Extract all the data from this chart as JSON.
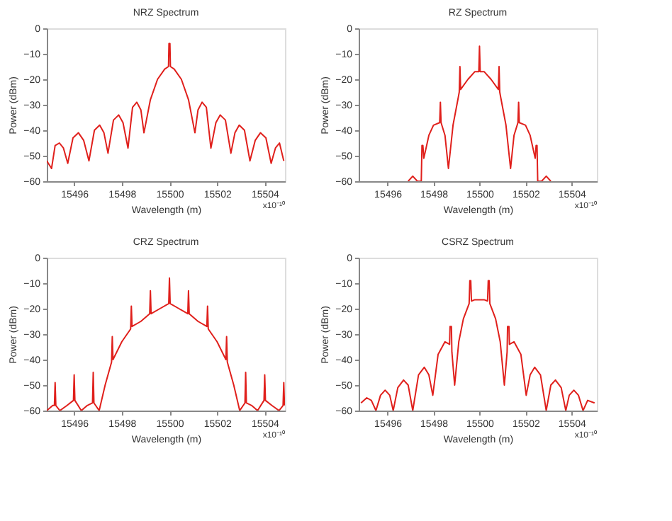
{
  "chart_data": [
    {
      "type": "line",
      "title": "NRZ Spectrum",
      "xlabel": "Wavelength (m)",
      "ylabel": "Power (dBm)",
      "annotations": [
        "x10⁻¹⁰"
      ],
      "xlim": [
        15494.85,
        15504.85
      ],
      "ylim": [
        -60,
        0
      ],
      "xticks": [
        15496,
        15498,
        15500,
        15502,
        15504
      ],
      "yticks": [
        0,
        -10,
        -20,
        -30,
        -40,
        -50,
        -60
      ],
      "grid": false,
      "line_style": "solid",
      "x": [
        15494.85,
        15495.05,
        15495.2,
        15495.38,
        15495.55,
        15495.73,
        15495.95,
        15496.18,
        15496.4,
        15496.62,
        15496.85,
        15497.07,
        15497.25,
        15497.42,
        15497.65,
        15497.87,
        15498.05,
        15498.26,
        15498.45,
        15498.63,
        15498.8,
        15498.93,
        15499.2,
        15499.5,
        15499.8,
        15499.96,
        15499.98,
        15500.02,
        15500.04,
        15500.2,
        15500.5,
        15500.8,
        15501.07,
        15501.2,
        15501.37,
        15501.55,
        15501.74,
        15501.95,
        15502.13,
        15502.35,
        15502.58,
        15502.75,
        15502.93,
        15503.15,
        15503.38,
        15503.6,
        15503.82,
        15504.05,
        15504.27,
        15504.45,
        15504.62,
        15504.8
      ],
      "series": [
        {
          "color": "#e0201c",
          "values": [
            -52,
            -55,
            -46,
            -45,
            -47,
            -53,
            -43,
            -41,
            -44,
            -52,
            -40,
            -38,
            -41,
            -49,
            -36,
            -34,
            -37,
            -47,
            -31,
            -29,
            -32,
            -41,
            -28,
            -20,
            -16,
            -15,
            -6,
            -6,
            -15,
            -16,
            -20,
            -28,
            -41,
            -32,
            -29,
            -31,
            -47,
            -37,
            -34,
            -36,
            -49,
            -41,
            -38,
            -40,
            -52,
            -44,
            -41,
            -43,
            -53,
            -47,
            -45,
            -52
          ]
        }
      ]
    },
    {
      "type": "line",
      "title": "RZ Spectrum",
      "xlabel": "Wavelength (m)",
      "ylabel": "Power (dBm)",
      "annotations": [
        "x10⁻¹⁰"
      ],
      "xlim": [
        15494.75,
        15505.1
      ],
      "ylim": [
        -60,
        0
      ],
      "xticks": [
        15496,
        15498,
        15500,
        15502,
        15504
      ],
      "yticks": [
        0,
        -10,
        -20,
        -30,
        -40,
        -50,
        -60
      ],
      "grid": false,
      "line_style": "solid",
      "x": [
        15496.9,
        15497.1,
        15497.3,
        15497.47,
        15497.5,
        15497.54,
        15497.58,
        15497.8,
        15498.0,
        15498.27,
        15498.3,
        15498.33,
        15498.5,
        15498.65,
        15498.85,
        15499.08,
        15499.12,
        15499.15,
        15499.18,
        15499.5,
        15499.8,
        15499.97,
        15500.0,
        15500.03,
        15500.2,
        15500.5,
        15500.82,
        15500.85,
        15500.88,
        15500.92,
        15501.15,
        15501.35,
        15501.5,
        15501.67,
        15501.7,
        15501.73,
        15502.0,
        15502.2,
        15502.42,
        15502.46,
        15502.5,
        15502.53,
        15502.7,
        15502.9,
        15503.1
      ],
      "series": [
        {
          "color": "#e0201c",
          "values": [
            -60,
            -58,
            -60,
            -60,
            -46,
            -46,
            -51,
            -42,
            -38,
            -37,
            -29,
            -37,
            -42,
            -55,
            -38,
            -27,
            -25,
            -15,
            -24,
            -20,
            -17,
            -17,
            -7,
            -17,
            -17,
            -20,
            -24,
            -15,
            -25,
            -27,
            -38,
            -55,
            -42,
            -37,
            -29,
            -37,
            -38,
            -42,
            -51,
            -46,
            -46,
            -60,
            -60,
            -58,
            -60
          ]
        }
      ]
    },
    {
      "type": "line",
      "title": "CRZ Spectrum",
      "xlabel": "Wavelength (m)",
      "ylabel": "Power (dBm)",
      "annotations": [
        "x10⁻¹⁰"
      ],
      "xlim": [
        15494.85,
        15504.85
      ],
      "ylim": [
        -60,
        0
      ],
      "xticks": [
        15496,
        15498,
        15500,
        15502,
        15504
      ],
      "yticks": [
        0,
        -10,
        -20,
        -30,
        -40,
        -50,
        -60
      ],
      "grid": false,
      "line_style": "solid",
      "x": [
        15494.85,
        15495.1,
        15495.17,
        15495.2,
        15495.23,
        15495.4,
        15495.7,
        15495.97,
        15496.0,
        15496.03,
        15496.3,
        15496.55,
        15496.77,
        15496.8,
        15496.83,
        15497.05,
        15497.3,
        15497.57,
        15497.6,
        15497.63,
        15498.0,
        15498.37,
        15498.4,
        15498.43,
        15498.8,
        15499.17,
        15499.2,
        15499.23,
        15499.6,
        15499.97,
        15500.0,
        15500.03,
        15500.4,
        15500.77,
        15500.8,
        15500.83,
        15501.2,
        15501.57,
        15501.6,
        15501.63,
        15502.0,
        15502.37,
        15502.4,
        15502.43,
        15502.7,
        15502.95,
        15503.17,
        15503.2,
        15503.23,
        15503.45,
        15503.7,
        15503.97,
        15504.0,
        15504.03,
        15504.3,
        15504.6,
        15504.77,
        15504.8,
        15504.83
      ],
      "series": [
        {
          "color": "#e0201c",
          "values": [
            -60,
            -58,
            -58,
            -49,
            -58,
            -60,
            -58,
            -56,
            -46,
            -56,
            -60,
            -58,
            -57,
            -45,
            -57,
            -60,
            -50,
            -41,
            -31,
            -40,
            -33,
            -28,
            -19,
            -27,
            -25,
            -22,
            -13,
            -22,
            -20,
            -18,
            -8,
            -18,
            -20,
            -22,
            -13,
            -22,
            -25,
            -27,
            -19,
            -28,
            -33,
            -40,
            -31,
            -41,
            -50,
            -60,
            -57,
            -45,
            -57,
            -58,
            -60,
            -56,
            -46,
            -56,
            -58,
            -60,
            -58,
            -49,
            -58
          ]
        }
      ]
    },
    {
      "type": "line",
      "title": "CSRZ Spectrum",
      "xlabel": "Wavelength (m)",
      "ylabel": "Power (dBm)",
      "annotations": [
        "x10⁻¹⁰"
      ],
      "xlim": [
        15494.75,
        15505.1
      ],
      "ylim": [
        -60,
        0
      ],
      "xticks": [
        15496,
        15498,
        15500,
        15502,
        15504
      ],
      "yticks": [
        0,
        -10,
        -20,
        -30,
        -40,
        -50,
        -60
      ],
      "grid": false,
      "line_style": "solid",
      "x": [
        15494.85,
        15495.1,
        15495.3,
        15495.5,
        15495.7,
        15495.9,
        15496.1,
        15496.25,
        15496.45,
        15496.7,
        15496.9,
        15497.1,
        15497.35,
        15497.6,
        15497.8,
        15497.97,
        15498.2,
        15498.5,
        15498.7,
        15498.72,
        15498.78,
        15498.8,
        15498.92,
        15499.1,
        15499.3,
        15499.55,
        15499.58,
        15499.62,
        15499.65,
        15499.8,
        15500.2,
        15500.35,
        15500.38,
        15500.42,
        15500.45,
        15500.7,
        15500.9,
        15501.08,
        15501.2,
        15501.22,
        15501.28,
        15501.3,
        15501.5,
        15501.8,
        15502.03,
        15502.2,
        15502.4,
        15502.65,
        15502.9,
        15503.1,
        15503.3,
        15503.55,
        15503.75,
        15503.9,
        15504.1,
        15504.3,
        15504.5,
        15504.7,
        15505.0
      ],
      "series": [
        {
          "color": "#e0201c",
          "values": [
            -57,
            -55,
            -56,
            -60,
            -54,
            -52,
            -54,
            -60,
            -51,
            -48,
            -50,
            -60,
            -46,
            -43,
            -46,
            -54,
            -38,
            -33,
            -34,
            -27,
            -27,
            -37,
            -50,
            -33,
            -24,
            -18,
            -9,
            -9,
            -17,
            -16.5,
            -16.5,
            -17,
            -9,
            -9,
            -18,
            -24,
            -33,
            -50,
            -37,
            -27,
            -27,
            -34,
            -33,
            -38,
            -54,
            -46,
            -43,
            -46,
            -60,
            -50,
            -48,
            -51,
            -60,
            -54,
            -52,
            -54,
            -60,
            -56,
            -57
          ]
        }
      ]
    }
  ]
}
